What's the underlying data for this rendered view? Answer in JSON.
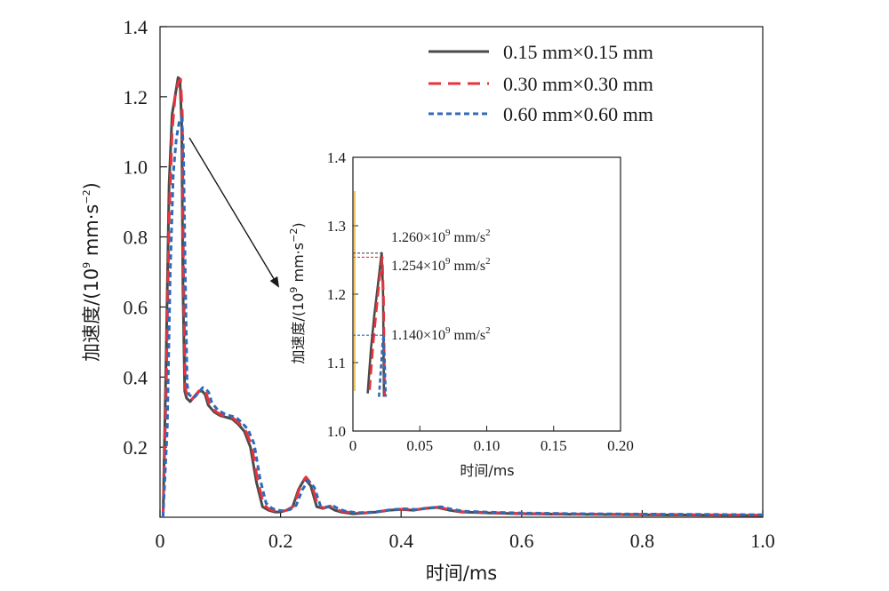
{
  "chart_data": [
    {
      "type": "line",
      "xlabel": "时间/ms",
      "ylabel_main": "加速度/(10",
      "ylabel_exp": "9",
      "ylabel_unit": " mm·s",
      "ylabel_unit_exp": "−2",
      "ylabel_close": ")",
      "xlim": [
        0,
        1.0
      ],
      "ylim": [
        0,
        1.4
      ],
      "xticks": [
        0,
        0.2,
        0.4,
        0.6,
        0.8,
        1.0
      ],
      "xtick_labels": [
        "0",
        "0.2",
        "0.4",
        "0.6",
        "0.8",
        "1.0"
      ],
      "yticks": [
        0.2,
        0.4,
        0.6,
        0.8,
        1.0,
        1.2,
        1.4
      ],
      "ytick_labels": [
        "0.2",
        "0.4",
        "0.6",
        "0.8",
        "1.0",
        "1.2",
        "1.4"
      ],
      "legend_position": "top-right",
      "series": [
        {
          "name": "0.15 mm×0.15 mm",
          "color": "#4a4a4a",
          "style": "solid",
          "x": [
            0.005,
            0.01,
            0.015,
            0.02,
            0.025,
            0.03,
            0.033,
            0.036,
            0.038,
            0.041,
            0.044,
            0.047,
            0.05,
            0.055,
            0.06,
            0.065,
            0.07,
            0.075,
            0.08,
            0.09,
            0.1,
            0.11,
            0.12,
            0.13,
            0.14,
            0.15,
            0.155,
            0.16,
            0.17,
            0.18,
            0.19,
            0.2,
            0.21,
            0.22,
            0.23,
            0.24,
            0.25,
            0.26,
            0.27,
            0.28,
            0.29,
            0.3,
            0.32,
            0.34,
            0.36,
            0.38,
            0.4,
            0.42,
            0.44,
            0.46,
            0.48,
            0.5,
            0.55,
            0.6,
            0.7,
            0.8,
            0.9,
            1.0
          ],
          "y": [
            0.0,
            0.45,
            0.95,
            1.15,
            1.2,
            1.255,
            1.25,
            1.12,
            0.65,
            0.36,
            0.34,
            0.335,
            0.33,
            0.34,
            0.35,
            0.36,
            0.36,
            0.35,
            0.32,
            0.3,
            0.29,
            0.285,
            0.28,
            0.265,
            0.245,
            0.2,
            0.15,
            0.1,
            0.03,
            0.02,
            0.015,
            0.015,
            0.02,
            0.03,
            0.08,
            0.11,
            0.09,
            0.03,
            0.025,
            0.03,
            0.02,
            0.015,
            0.01,
            0.012,
            0.015,
            0.02,
            0.022,
            0.02,
            0.025,
            0.028,
            0.02,
            0.015,
            0.012,
            0.01,
            0.008,
            0.007,
            0.006,
            0.005
          ]
        },
        {
          "name": "0.30 mm×0.30 mm",
          "color": "#e8333a",
          "style": "dashed",
          "x": [
            0.005,
            0.01,
            0.015,
            0.02,
            0.025,
            0.03,
            0.034,
            0.037,
            0.039,
            0.042,
            0.045,
            0.048,
            0.052,
            0.057,
            0.062,
            0.067,
            0.072,
            0.077,
            0.082,
            0.092,
            0.102,
            0.112,
            0.122,
            0.132,
            0.142,
            0.152,
            0.157,
            0.162,
            0.172,
            0.182,
            0.192,
            0.202,
            0.212,
            0.222,
            0.232,
            0.242,
            0.252,
            0.262,
            0.272,
            0.282,
            0.292,
            0.302,
            0.322,
            0.342,
            0.362,
            0.382,
            0.402,
            0.422,
            0.442,
            0.462,
            0.482,
            0.502,
            0.552,
            0.602,
            0.702,
            0.802,
            0.902,
            1.0
          ],
          "y": [
            0.0,
            0.35,
            0.85,
            1.1,
            1.2,
            1.24,
            1.25,
            1.15,
            0.7,
            0.37,
            0.345,
            0.34,
            0.335,
            0.345,
            0.355,
            0.365,
            0.362,
            0.352,
            0.322,
            0.302,
            0.292,
            0.287,
            0.282,
            0.267,
            0.247,
            0.205,
            0.155,
            0.105,
            0.035,
            0.022,
            0.017,
            0.016,
            0.021,
            0.032,
            0.085,
            0.115,
            0.092,
            0.032,
            0.027,
            0.032,
            0.022,
            0.017,
            0.012,
            0.013,
            0.016,
            0.021,
            0.023,
            0.021,
            0.026,
            0.029,
            0.021,
            0.016,
            0.013,
            0.011,
            0.009,
            0.008,
            0.007,
            0.006
          ]
        },
        {
          "name": "0.60 mm×0.60 mm",
          "color": "#2f6ab8",
          "style": "dotted",
          "x": [
            0.005,
            0.012,
            0.017,
            0.022,
            0.027,
            0.032,
            0.036,
            0.039,
            0.042,
            0.045,
            0.048,
            0.052,
            0.056,
            0.061,
            0.066,
            0.071,
            0.076,
            0.081,
            0.086,
            0.096,
            0.106,
            0.116,
            0.126,
            0.136,
            0.146,
            0.156,
            0.161,
            0.166,
            0.176,
            0.186,
            0.196,
            0.206,
            0.216,
            0.226,
            0.236,
            0.246,
            0.256,
            0.266,
            0.276,
            0.286,
            0.296,
            0.306,
            0.326,
            0.346,
            0.366,
            0.386,
            0.406,
            0.426,
            0.446,
            0.466,
            0.486,
            0.506,
            0.556,
            0.606,
            0.706,
            0.806,
            0.906,
            1.0
          ],
          "y": [
            0.0,
            0.25,
            0.7,
            0.98,
            1.08,
            1.13,
            1.14,
            1.05,
            0.68,
            0.38,
            0.35,
            0.345,
            0.34,
            0.35,
            0.36,
            0.37,
            0.366,
            0.356,
            0.326,
            0.306,
            0.296,
            0.29,
            0.285,
            0.27,
            0.25,
            0.21,
            0.16,
            0.11,
            0.04,
            0.025,
            0.02,
            0.018,
            0.022,
            0.034,
            0.078,
            0.105,
            0.085,
            0.034,
            0.029,
            0.034,
            0.024,
            0.018,
            0.013,
            0.014,
            0.017,
            0.022,
            0.024,
            0.022,
            0.027,
            0.03,
            0.022,
            0.017,
            0.014,
            0.012,
            0.01,
            0.009,
            0.008,
            0.007
          ]
        }
      ]
    },
    {
      "type": "line",
      "role": "inset",
      "xlabel": "时间/ms",
      "ylabel_main": "加速度/(10",
      "ylabel_exp": "9",
      "ylabel_unit": " mm·s",
      "ylabel_unit_exp": "−2",
      "ylabel_close": ")",
      "xlim": [
        0,
        0.2
      ],
      "ylim": [
        1.0,
        1.4
      ],
      "xticks": [
        0,
        0.05,
        0.1,
        0.15,
        0.2
      ],
      "xtick_labels": [
        "0",
        "0.05",
        "0.10",
        "0.15",
        "0.20"
      ],
      "yticks": [
        1.0,
        1.1,
        1.2,
        1.3,
        1.4
      ],
      "ytick_labels": [
        "1.0",
        "1.1",
        "1.2",
        "1.3",
        "1.4"
      ],
      "series": [
        {
          "color": "#4a4a4a",
          "style": "solid",
          "x": [
            0.011,
            0.0135,
            0.016,
            0.0185,
            0.0205,
            0.0215,
            0.0225,
            0.0232
          ],
          "y": [
            1.055,
            1.12,
            1.17,
            1.21,
            1.245,
            1.26,
            1.2,
            1.05
          ]
        },
        {
          "color": "#e8333a",
          "style": "dashed",
          "x": [
            0.0125,
            0.015,
            0.0175,
            0.0195,
            0.021,
            0.022,
            0.023,
            0.0238
          ],
          "y": [
            1.06,
            1.125,
            1.175,
            1.215,
            1.24,
            1.254,
            1.19,
            1.05
          ]
        },
        {
          "color": "#2f6ab8",
          "style": "dotted",
          "x": [
            0.0195,
            0.0205,
            0.0215,
            0.0222,
            0.023,
            0.0238,
            0.0245
          ],
          "y": [
            1.05,
            1.08,
            1.11,
            1.13,
            1.14,
            1.1,
            1.05
          ]
        }
      ],
      "annotations": [
        {
          "base": "1.260×10",
          "exp": "9",
          "unit": " mm/s",
          "unit_exp": "2",
          "y": 1.26,
          "color": "#4a4a4a"
        },
        {
          "base": "1.254×10",
          "exp": "9",
          "unit": " mm/s",
          "unit_exp": "2",
          "y": 1.254,
          "color": "#e8333a"
        },
        {
          "base": "1.140×10",
          "exp": "9",
          "unit": " mm/s",
          "unit_exp": "2",
          "y": 1.14,
          "color": "#2f6ab8"
        }
      ]
    }
  ]
}
